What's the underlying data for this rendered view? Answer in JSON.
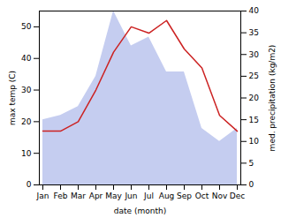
{
  "chart_data": {
    "type": "line",
    "categories": [
      "Jan",
      "Feb",
      "Mar",
      "Apr",
      "May",
      "Jun",
      "Jul",
      "Aug",
      "Sep",
      "Oct",
      "Nov",
      "Dec"
    ],
    "xlabel": "date (month)",
    "ylabel": "max temp (C)",
    "y2label": "med. precipitation (kg/m2)",
    "ylim": [
      0,
      55
    ],
    "yticks": [
      0,
      10,
      20,
      30,
      40,
      50
    ],
    "y2lim": [
      0,
      40
    ],
    "y2ticks": [
      0,
      5,
      10,
      15,
      20,
      25,
      30,
      35,
      40
    ],
    "series": [
      {
        "type": "area",
        "axis": "y2",
        "color": "#c5cdf0",
        "values": [
          15,
          16,
          18,
          25,
          40,
          32,
          34,
          26,
          26,
          13,
          10,
          13
        ]
      },
      {
        "type": "line",
        "color": "#cc2222",
        "values": [
          17,
          17,
          20,
          30,
          42,
          50,
          48,
          52,
          43,
          37,
          22,
          17
        ]
      }
    ]
  }
}
